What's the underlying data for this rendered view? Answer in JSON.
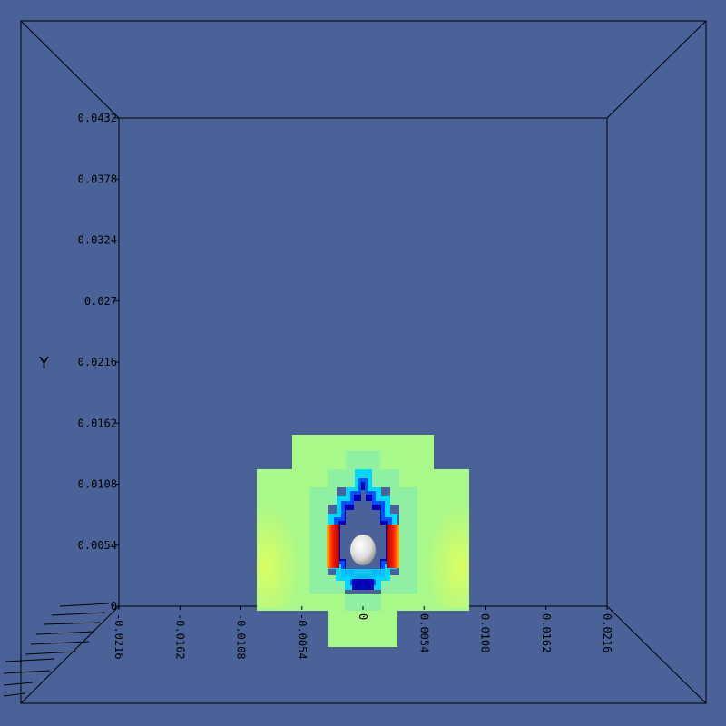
{
  "viewport": {
    "background": "#4a6298",
    "edge_color": "#000000",
    "sphere_color": "#f2f2f2"
  },
  "axes": {
    "y_label": "Y",
    "y_ticks": [
      "0.0432",
      "0.0378",
      "0.0324",
      "0.027",
      "0.0216",
      "0.0162",
      "0.0108",
      "0.0054",
      "0"
    ],
    "x_ticks": [
      "-0.0216",
      "-0.0162",
      "-0.0108",
      "-0.0054",
      "0",
      "0.0054",
      "0.0108",
      "0.0162",
      "0.0216"
    ]
  },
  "field": {
    "colormap": [
      "#0000b4",
      "#0050ff",
      "#00d8ff",
      "#80ff80",
      "#ffff00",
      "#ff8000",
      "#ff0000",
      "#a00000"
    ],
    "outer_level_color": "#a8f88a",
    "mid_level_color": "#8ef0a0"
  }
}
